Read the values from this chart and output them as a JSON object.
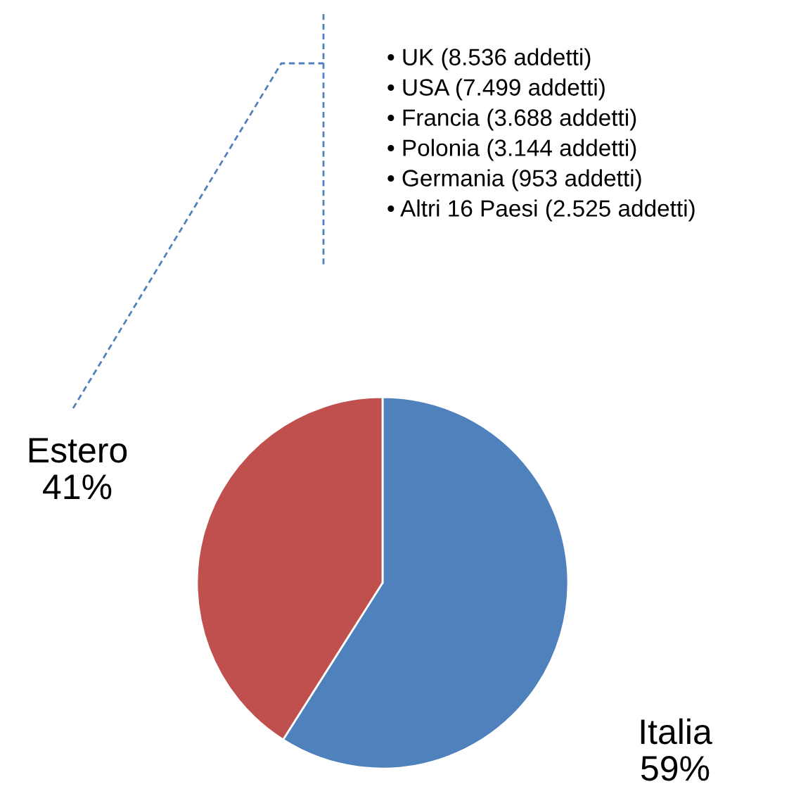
{
  "chart_data": {
    "type": "pie",
    "categories": [
      "Italia",
      "Estero"
    ],
    "values": [
      59,
      41
    ],
    "value_labels": [
      "59%",
      "41%"
    ],
    "colors": [
      "#4f81bd",
      "#c0504d"
    ],
    "annotations": [
      "• UK (8.536 addetti)",
      "• USA (7.499 addetti)",
      "• Francia (3.688 addetti)",
      "• Polonia (3.144 addetti)",
      "• Germania (953 addetti)",
      "• Altri 16 Paesi (2.525 addetti)"
    ]
  }
}
